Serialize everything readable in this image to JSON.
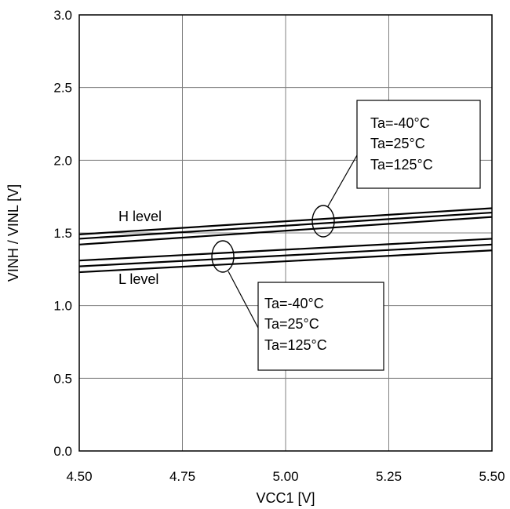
{
  "chart_data": {
    "type": "line",
    "title": "",
    "xlabel": "VCC1 [V]",
    "ylabel": "VINH / VINL [V]",
    "xlim": [
      4.5,
      5.5
    ],
    "ylim": [
      0.0,
      3.0
    ],
    "x_ticks": [
      "4.50",
      "4.75",
      "5.00",
      "5.25",
      "5.50"
    ],
    "y_ticks": [
      "0.0",
      "0.5",
      "1.0",
      "1.5",
      "2.0",
      "2.5",
      "3.0"
    ],
    "grid": true,
    "series": [
      {
        "x": [
          4.5,
          5.5
        ],
        "values": [
          1.49,
          1.67
        ]
      },
      {
        "x": [
          4.5,
          5.5
        ],
        "values": [
          1.46,
          1.64
        ]
      },
      {
        "x": [
          4.5,
          5.5
        ],
        "values": [
          1.42,
          1.61
        ]
      },
      {
        "x": [
          4.5,
          5.5
        ],
        "values": [
          1.31,
          1.46
        ]
      },
      {
        "x": [
          4.5,
          5.5
        ],
        "values": [
          1.27,
          1.42
        ]
      },
      {
        "x": [
          4.5,
          5.5
        ],
        "values": [
          1.23,
          1.38
        ]
      }
    ],
    "annotations": {
      "h_level_label": "H level",
      "l_level_label": "L level",
      "h_box_lines": [
        "Ta=-40°C",
        "Ta=25°C",
        "Ta=125°C"
      ],
      "l_box_lines": [
        "Ta=-40°C",
        "Ta=25°C",
        "Ta=125°C"
      ]
    },
    "colors": {
      "lines": "#000000",
      "grid": "#808080",
      "background": "#ffffff"
    }
  }
}
